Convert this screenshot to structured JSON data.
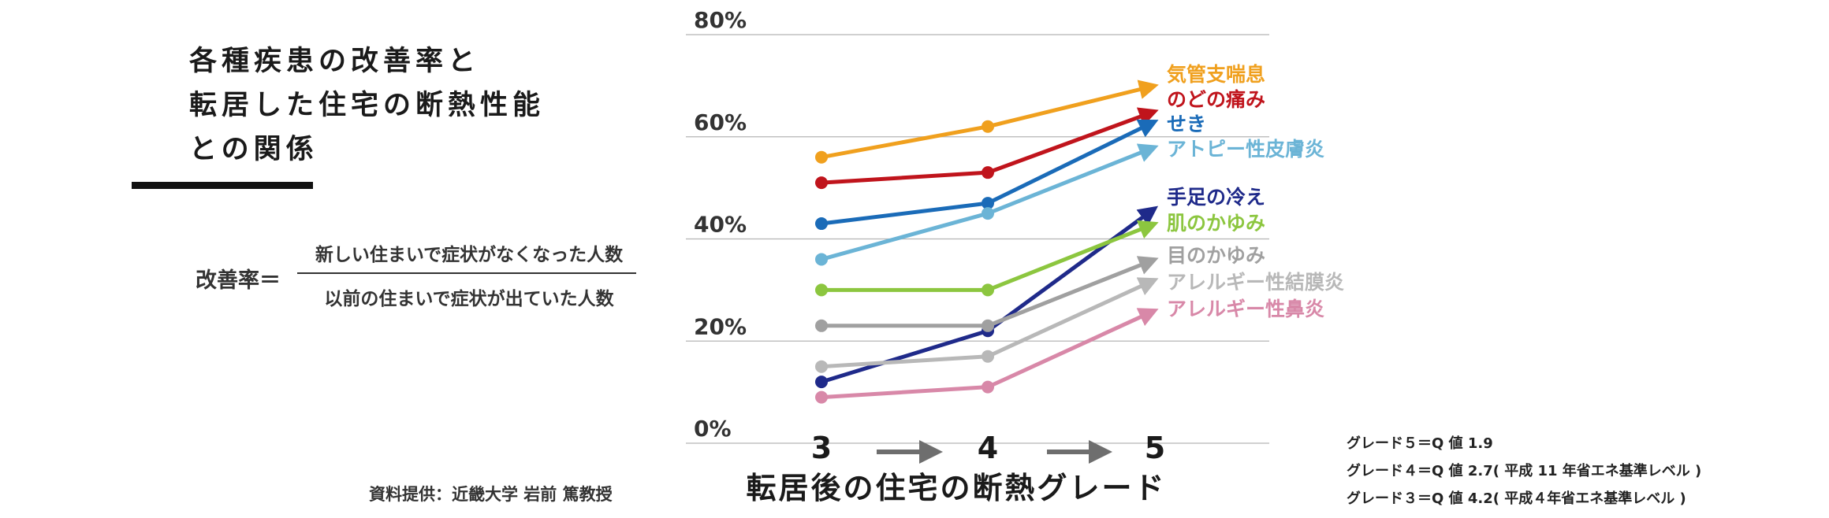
{
  "title": {
    "line1": "各種疾患の改善率と",
    "line2": "転居した住宅の断熱性能",
    "line3": "との関係"
  },
  "formula": {
    "lhs": "改善率＝",
    "numerator": "新しい住まいで症状がなくなった人数",
    "denominator": "以前の住まいで症状が出ていた人数"
  },
  "credit": "資料提供：近畿大学 岩前 篤教授",
  "grade_notes": [
    "グレード５＝Q 値 1.9",
    "グレード４＝Q 値 2.7( 平成 11 年省エネ基準レベル )",
    "グレード３＝Q 値 4.2( 平成４年省エネ基準レベル )"
  ],
  "chart_data": {
    "type": "line",
    "x": [
      3,
      4,
      5
    ],
    "x_tick_labels": [
      "3",
      "4",
      "5"
    ],
    "xlabel": "転居後の住宅の断熱グレード",
    "ylabel": "",
    "ylim": [
      0,
      80
    ],
    "y_ticks": [
      0,
      20,
      40,
      60,
      80
    ],
    "y_tick_labels": [
      "0%",
      "20%",
      "40%",
      "60%",
      "80%"
    ],
    "grid": true,
    "legend": "right-end labels",
    "series": [
      {
        "name": "気管支喘息",
        "color": "#f0a01e",
        "values": [
          56,
          62,
          70
        ]
      },
      {
        "name": "のどの痛み",
        "color": "#c0141c",
        "values": [
          51,
          53,
          65
        ]
      },
      {
        "name": "せき",
        "color": "#1a6bb8",
        "values": [
          43,
          47,
          63
        ]
      },
      {
        "name": "アトピー性皮膚炎",
        "color": "#6bb4d6",
        "values": [
          36,
          45,
          58
        ]
      },
      {
        "name": "手足の冷え",
        "color": "#1f2a8a",
        "values": [
          12,
          22,
          46
        ]
      },
      {
        "name": "肌のかゆみ",
        "color": "#8cc63f",
        "values": [
          30,
          30,
          43
        ]
      },
      {
        "name": "目のかゆみ",
        "color": "#a0a0a0",
        "values": [
          23,
          23,
          36
        ]
      },
      {
        "name": "アレルギー性結膜炎",
        "color": "#b8b8b8",
        "values": [
          15,
          17,
          32
        ]
      },
      {
        "name": "アレルギー性鼻炎",
        "color": "#d888a8",
        "values": [
          9,
          11,
          26
        ]
      }
    ]
  }
}
